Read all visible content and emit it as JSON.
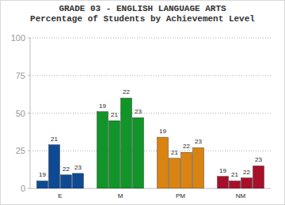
{
  "chart_data": {
    "type": "bar",
    "title": "GRADE 03 - ENGLISH LANGUAGE ARTS",
    "subtitle": "Percentage of Students by Achievement Level",
    "categories": [
      "E",
      "M",
      "PM",
      "NM"
    ],
    "series": [
      {
        "name": "19",
        "colors": [
          "#0e4a94",
          "#119428",
          "#d98412",
          "#a8102a"
        ],
        "values": [
          5,
          51,
          34,
          8
        ]
      },
      {
        "name": "21",
        "colors": [
          "#0e4a94",
          "#119428",
          "#d98412",
          "#a8102a"
        ],
        "values": [
          29,
          45,
          20,
          5
        ]
      },
      {
        "name": "22",
        "colors": [
          "#0e4a94",
          "#119428",
          "#d98412",
          "#a8102a"
        ],
        "values": [
          9,
          60,
          24,
          7
        ]
      },
      {
        "name": "23",
        "colors": [
          "#0e4a94",
          "#119428",
          "#d98412",
          "#a8102a"
        ],
        "values": [
          10,
          47,
          27,
          15
        ]
      }
    ],
    "ylim": [
      0,
      100
    ],
    "yticks": [
      0,
      25,
      50,
      75,
      100
    ],
    "grid": true
  }
}
